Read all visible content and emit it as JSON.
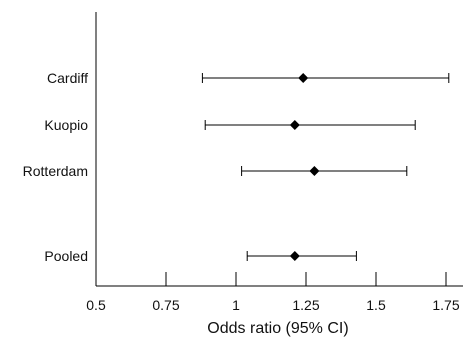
{
  "chart_data": {
    "type": "scatter",
    "subtype": "forest-plot",
    "categories": [
      "Cardiff",
      "Kuopio",
      "Rotterdam",
      "Pooled"
    ],
    "estimate": [
      1.24,
      1.21,
      1.28,
      1.21
    ],
    "ci_lower": [
      0.88,
      0.89,
      1.02,
      1.04
    ],
    "ci_upper": [
      1.76,
      1.64,
      1.61,
      1.43
    ],
    "xlabel": "Odds ratio (95% CI)",
    "ylabel": "",
    "title": "",
    "xlim": [
      0.5,
      1.8
    ],
    "xticks": [
      0.5,
      0.75,
      1,
      1.25,
      1.5,
      1.75
    ],
    "xtick_labels": [
      "0.5",
      "0.75",
      "1",
      "1.25",
      "1.5",
      "1.75"
    ],
    "grid": false,
    "legend": "none",
    "marker": "diamond",
    "color": "#000000"
  }
}
